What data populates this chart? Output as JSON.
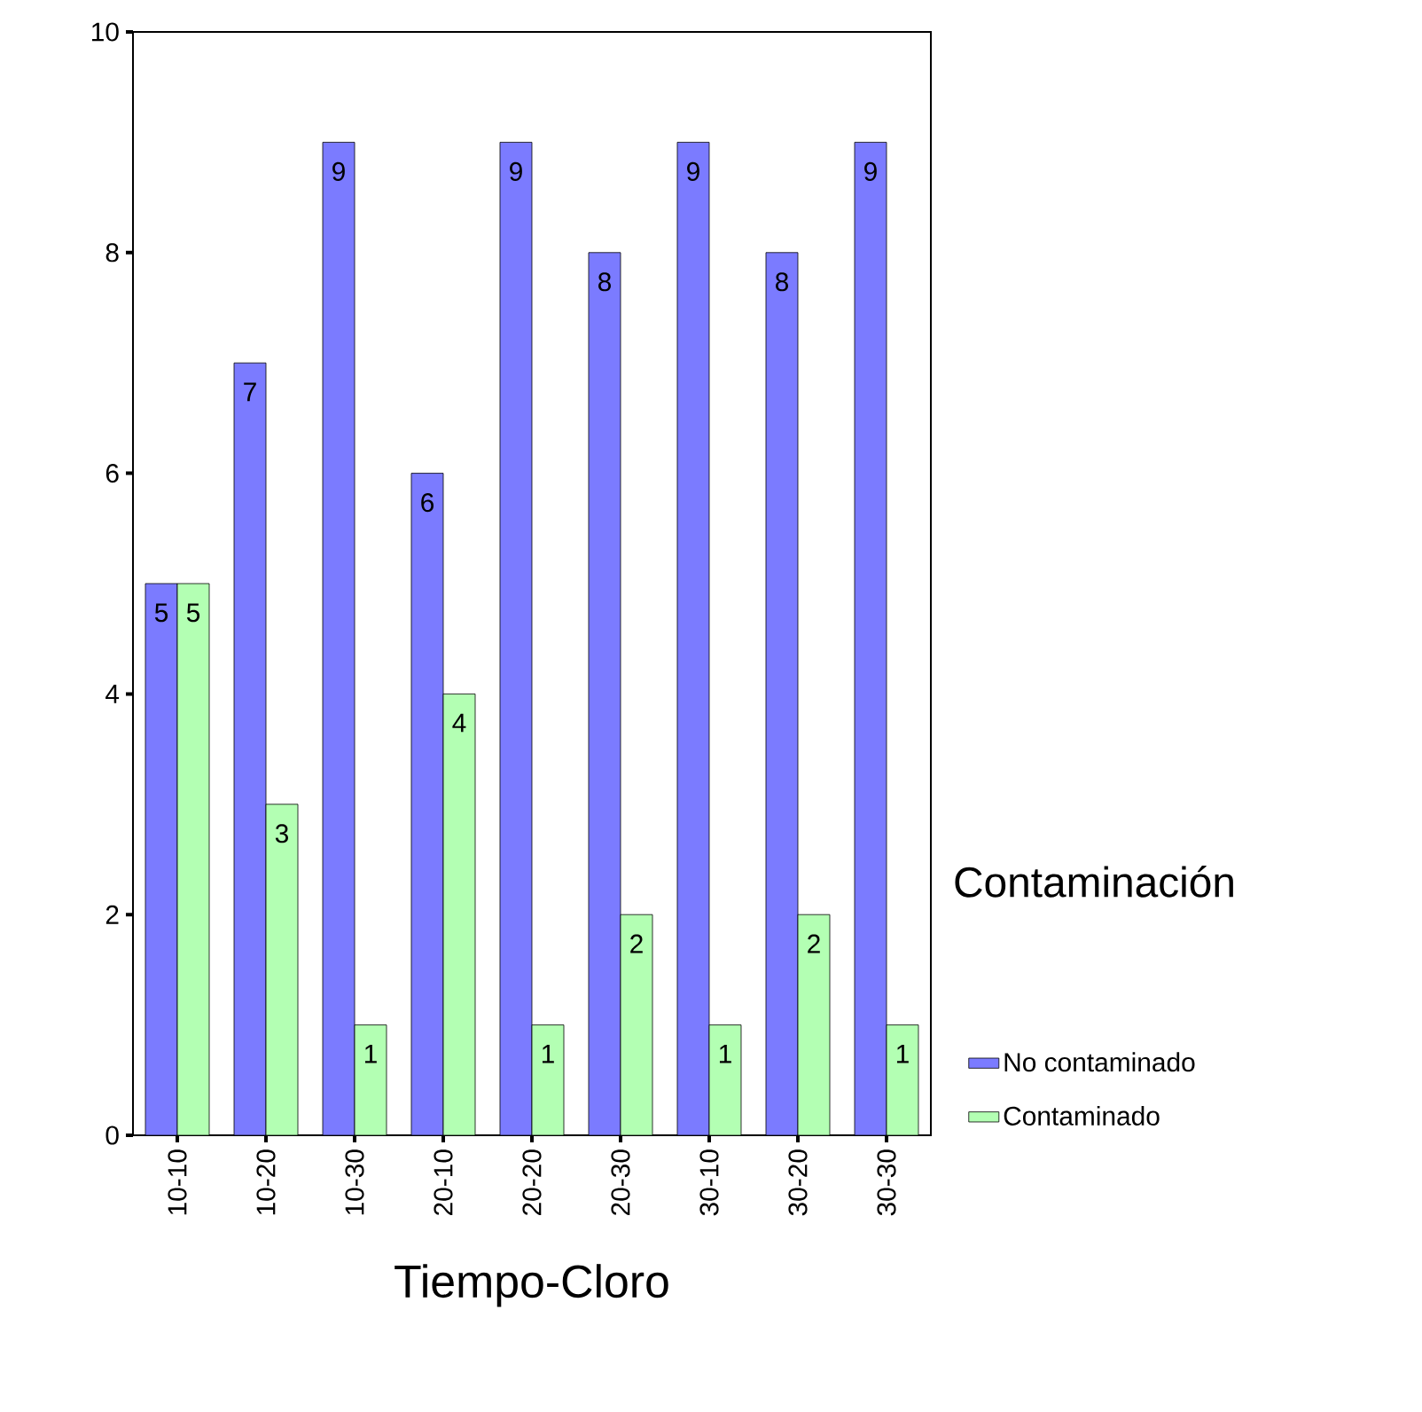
{
  "chart_data": {
    "type": "bar",
    "xlabel": "Tiempo-Cloro",
    "legend_title": "Contaminación",
    "legend": "right",
    "data_labels": true,
    "categories": [
      "10-10",
      "10-20",
      "10-30",
      "20-10",
      "20-20",
      "20-30",
      "30-10",
      "30-20",
      "30-30"
    ],
    "series": [
      {
        "name": "No contaminado",
        "color": "#7b7bff",
        "values": [
          5,
          7,
          9,
          6,
          9,
          8,
          9,
          8,
          9
        ]
      },
      {
        "name": "Contaminado",
        "color": "#b3ffb3",
        "values": [
          5,
          3,
          1,
          4,
          1,
          2,
          1,
          2,
          1
        ]
      }
    ],
    "ylim": [
      0,
      10
    ],
    "yticks": [
      0,
      2,
      4,
      6,
      8,
      10
    ]
  }
}
